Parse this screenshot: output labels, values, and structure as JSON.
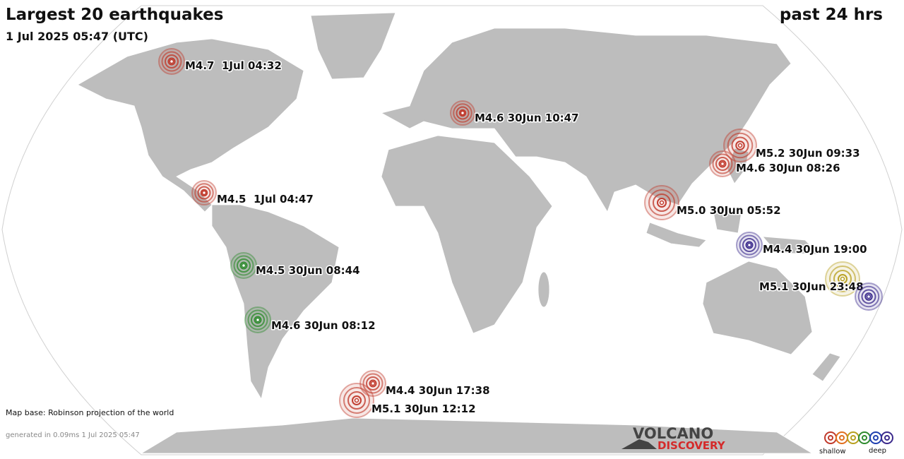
{
  "header": {
    "title": "Largest 20 earthquakes",
    "subtitle": "1 Jul 2025 05:47 (UTC)",
    "period": "past 24 hrs"
  },
  "quakes": [
    {
      "label": "M4.7  1Jul 04:32",
      "color": "#c0392b"
    },
    {
      "label": "M4.6 30Jun 10:47",
      "color": "#c0392b"
    },
    {
      "label": "M5.2 30Jun 09:33",
      "color": "#c0392b"
    },
    {
      "label": "M4.6 30Jun 08:26",
      "color": "#c0392b"
    },
    {
      "label": "M4.5  1Jul 04:47",
      "color": "#c0392b"
    },
    {
      "label": "M5.0 30Jun 05:52",
      "color": "#c0392b"
    },
    {
      "label": "M4.4 30Jun 19:00",
      "color": "#3b2a8c"
    },
    {
      "label": "M4.5 30Jun 08:44",
      "color": "#2e8b2e"
    },
    {
      "label": "M5.1 30Jun 23:48",
      "color": "#b8a020"
    },
    {
      "color": "#3b2a8c"
    },
    {
      "label": "M4.6 30Jun 08:12",
      "color": "#2e8b2e"
    },
    {
      "label": "M4.4 30Jun 17:38",
      "color": "#c0392b"
    },
    {
      "label": "M5.1 30Jun 12:12",
      "color": "#c0392b"
    }
  ],
  "footer": {
    "map_base": "Map base: Robinson projection of the world",
    "generated": "generated in 0.09ms  1 Jul 2025 05:47",
    "logo_top": "VOLCANO",
    "logo_bottom": "DISCOVERY",
    "legend_shallow": "shallow",
    "legend_deep": "deep"
  }
}
